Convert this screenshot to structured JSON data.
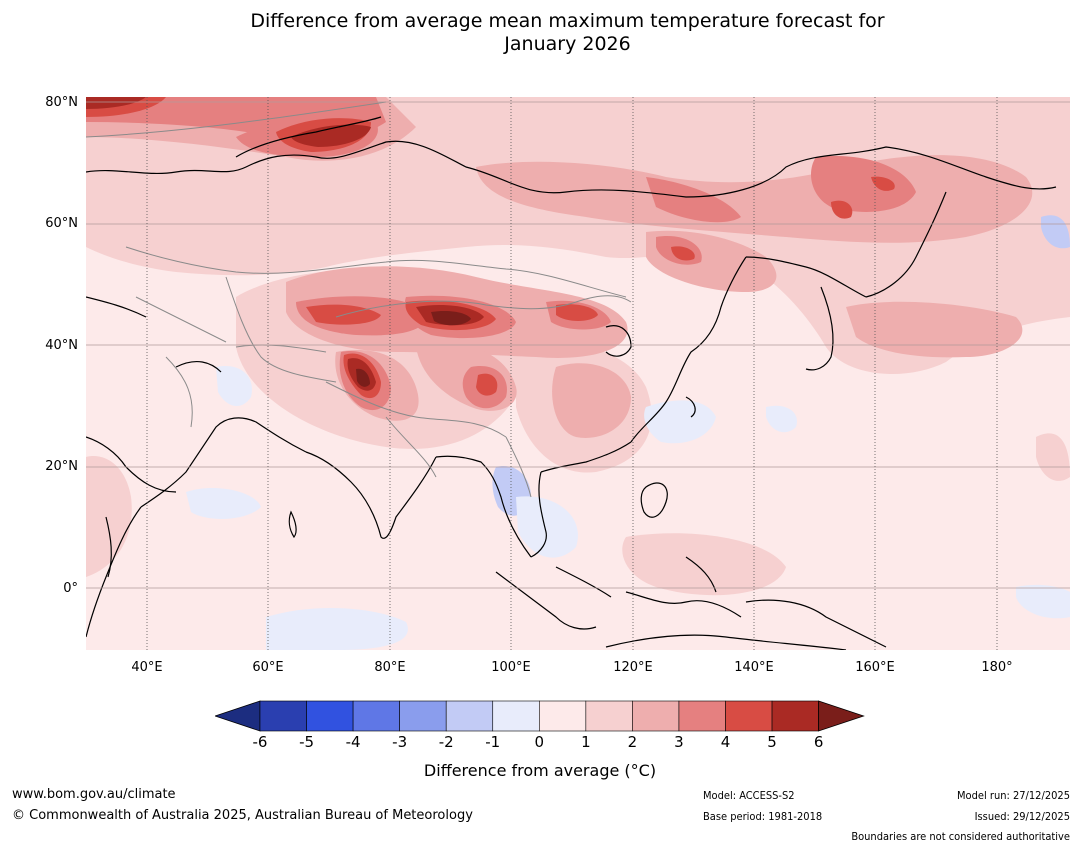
{
  "title": {
    "line1": "Difference from average mean maximum temperature forecast for",
    "line2": "January 2026"
  },
  "map": {
    "region": "Asia",
    "lat_labels": [
      "80°N",
      "60°N",
      "40°N",
      "20°N",
      "0°"
    ],
    "lon_labels": [
      "40°E",
      "60°E",
      "80°E",
      "100°E",
      "120°E",
      "140°E",
      "160°E",
      "180°"
    ]
  },
  "colorbar": {
    "ticks": [
      "-6",
      "-5",
      "-4",
      "-3",
      "-2",
      "-1",
      "0",
      "1",
      "2",
      "3",
      "4",
      "5",
      "6"
    ],
    "colors": [
      "#1c2d80",
      "#2a3fb0",
      "#3152e0",
      "#5f77e6",
      "#8a9ded",
      "#c2cbf5",
      "#e8ecfb",
      "#fdeaea",
      "#f6d0d0",
      "#eeaeae",
      "#e58080",
      "#d84c44",
      "#aa2a24",
      "#7a1e1a"
    ],
    "label": "Difference from average (°C)"
  },
  "footer": {
    "url": "www.bom.gov.au/climate",
    "copyright": "© Commonwealth of Australia 2025, Australian Bureau of Meteorology",
    "model": "Model: ACCESS-S2",
    "base_period": "Base period: 1981-2018",
    "model_run": "Model run: 27/12/2025",
    "issued": "Issued: 29/12/2025",
    "disclaimer": "Boundaries are not considered authoritative"
  }
}
